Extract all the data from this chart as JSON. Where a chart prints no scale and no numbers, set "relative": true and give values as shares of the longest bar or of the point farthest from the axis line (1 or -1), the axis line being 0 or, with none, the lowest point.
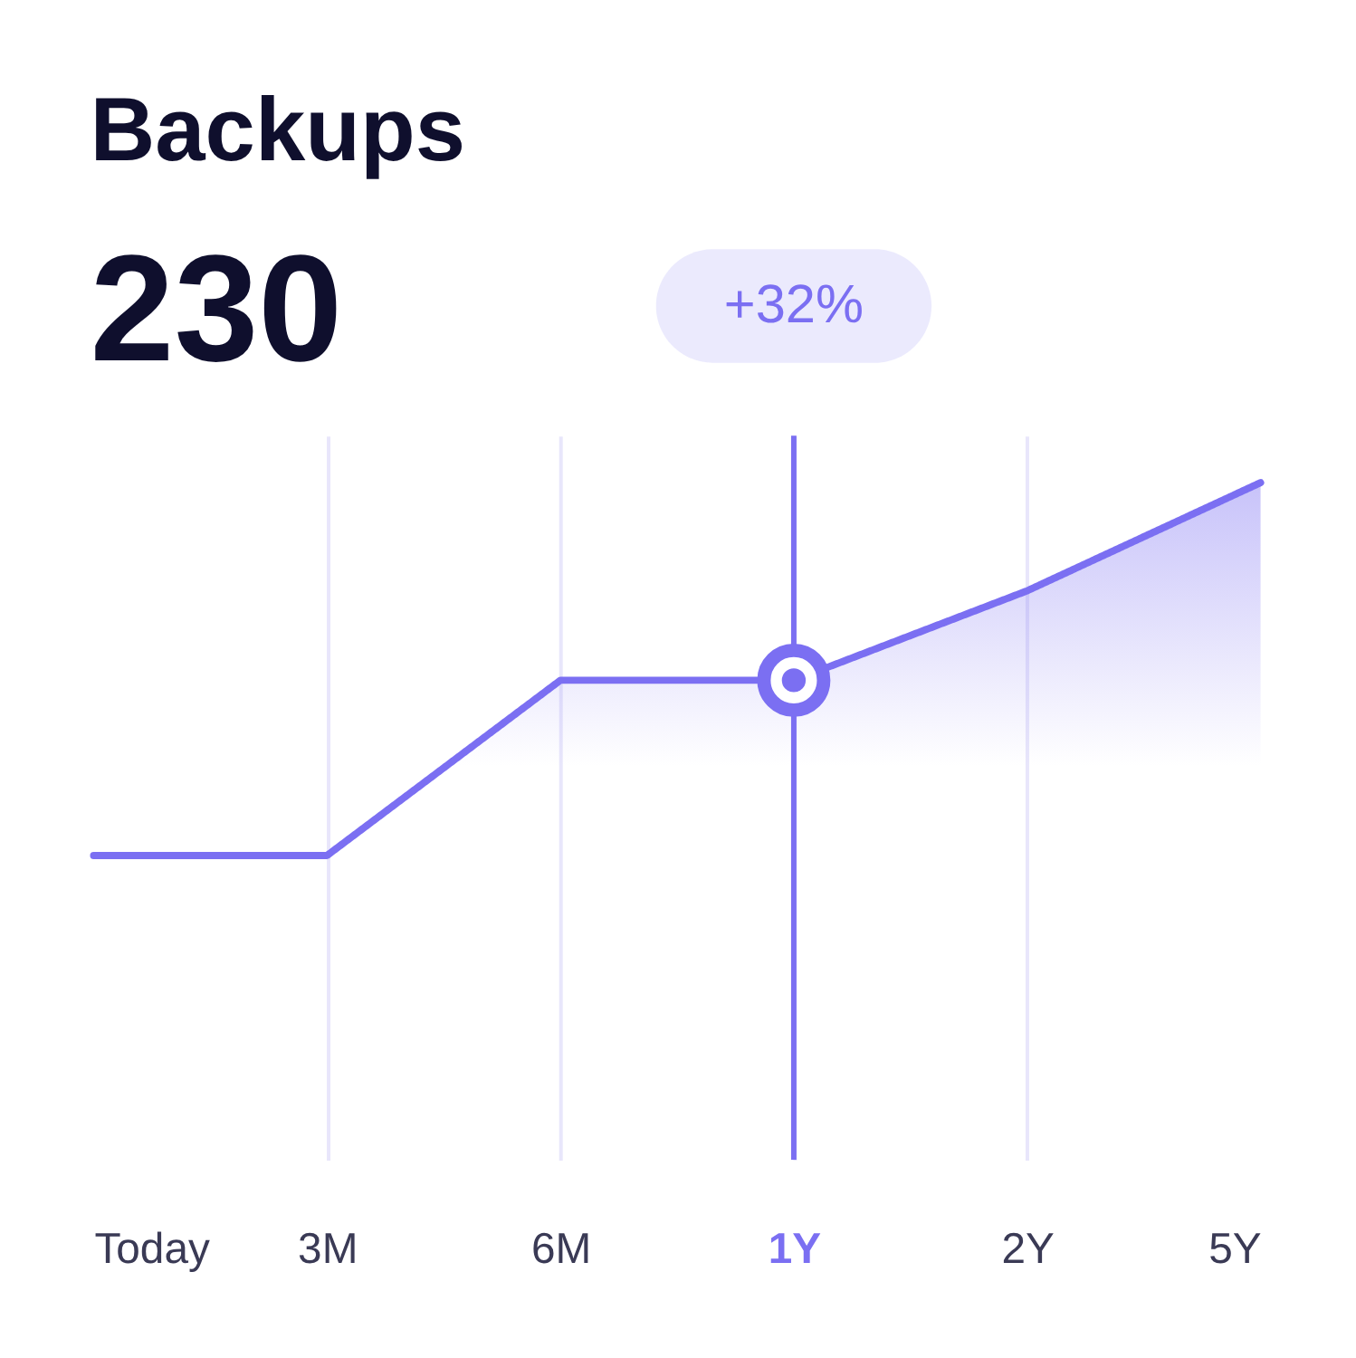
{
  "chart_data": {
    "type": "area",
    "title": "Backups",
    "subtitle": "230",
    "categories": [
      "Today",
      "3M",
      "6M",
      "1Y",
      "2Y",
      "5Y"
    ],
    "series": [
      {
        "color": "#7b6ff2",
        "values": [
          0,
          0,
          0.47,
          0.47,
          0.71,
          1
        ]
      }
    ],
    "relative": true,
    "grid": "x",
    "ref_lines": [
      {
        "axis": "x",
        "value": "1Y",
        "color": "#7b6ff2"
      }
    ],
    "annotations": [
      "+32%"
    ]
  }
}
